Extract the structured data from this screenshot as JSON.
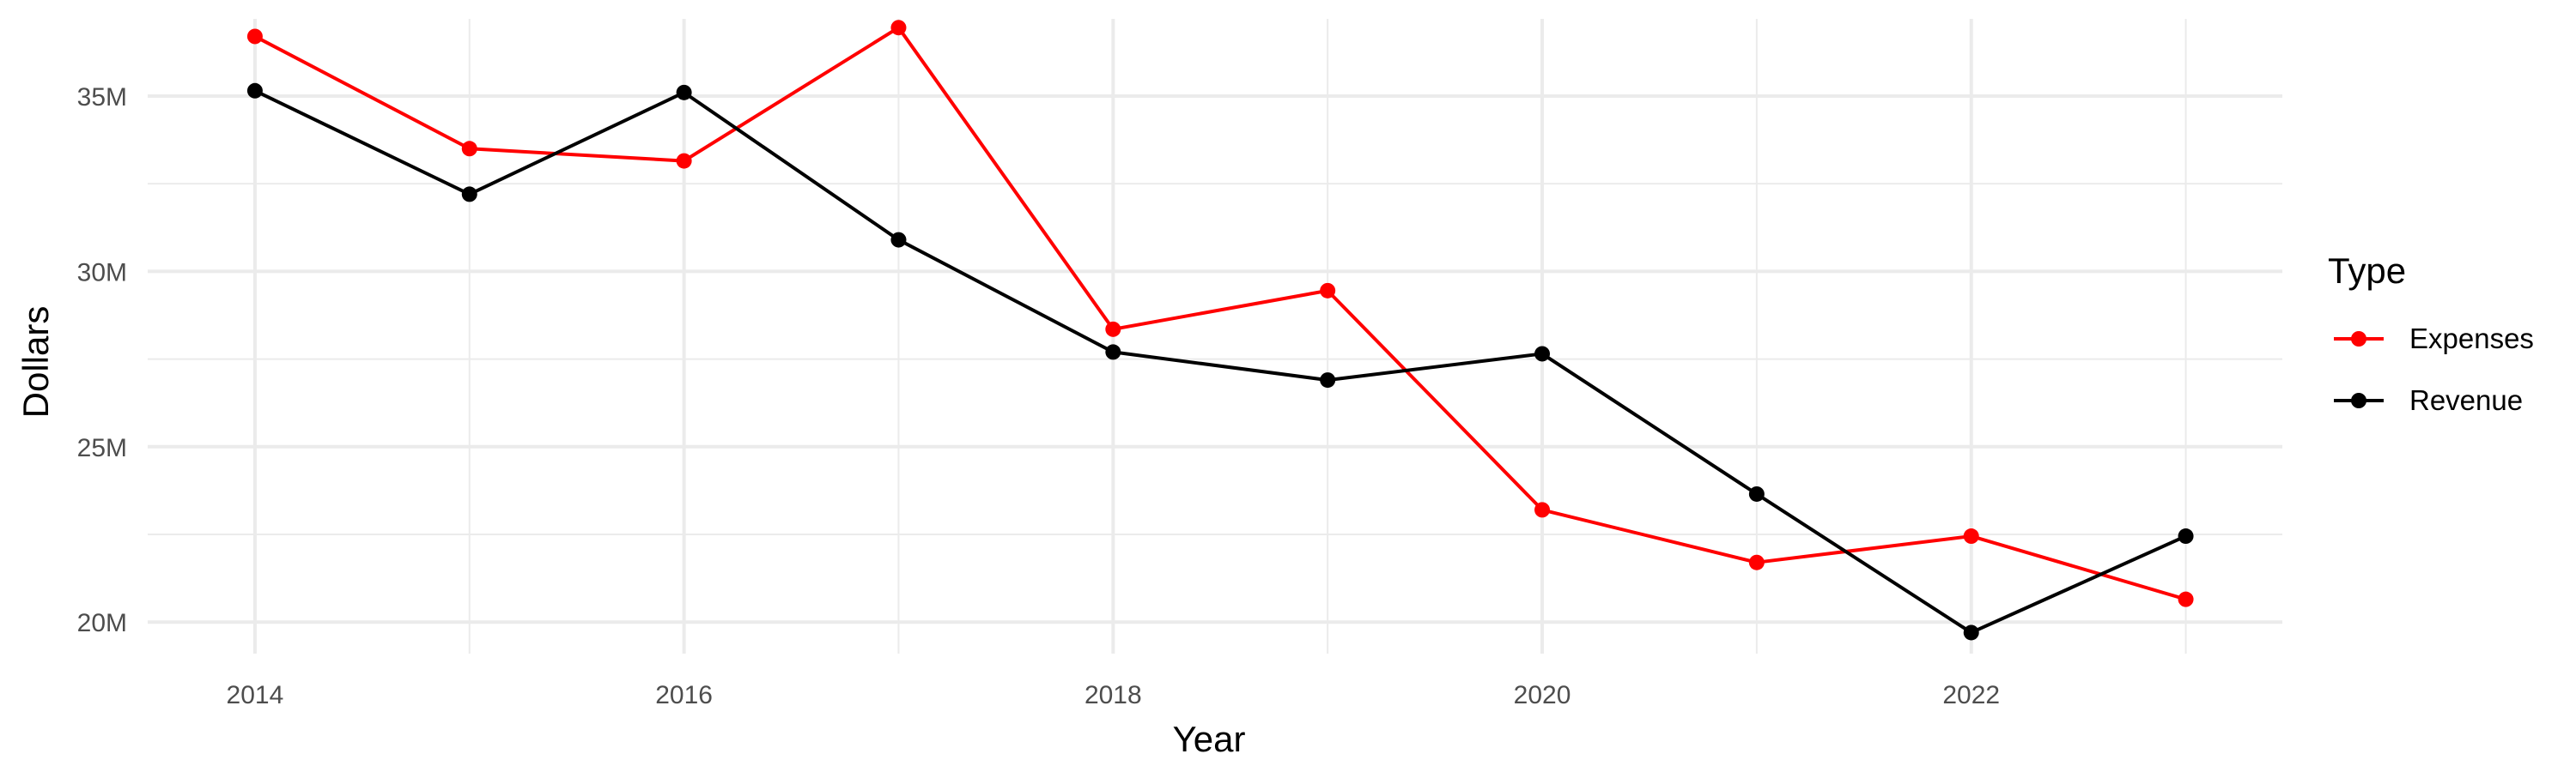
{
  "chart_data": {
    "type": "line",
    "title": "",
    "xlabel": "Year",
    "ylabel": "Dollars",
    "x": [
      2014,
      2015,
      2016,
      2017,
      2018,
      2019,
      2020,
      2021,
      2022,
      2023
    ],
    "x_ticks": [
      2014,
      2016,
      2018,
      2020,
      2022
    ],
    "x_tick_labels": [
      "2014",
      "2016",
      "2018",
      "2020",
      "2022"
    ],
    "xlim": [
      2013.5,
      2023.45
    ],
    "y_ticks": [
      20000000,
      25000000,
      30000000,
      35000000
    ],
    "y_tick_labels": [
      "20M",
      "25M",
      "30M",
      "35M"
    ],
    "ylim": [
      19100000,
      37200000
    ],
    "grid": true,
    "legend": {
      "title": "Type",
      "position": "right"
    },
    "series": [
      {
        "name": "Expenses",
        "color": "#ff0000",
        "values": [
          36700000,
          33500000,
          33150000,
          36950000,
          28350000,
          29450000,
          23200000,
          21700000,
          22450000,
          20650000
        ]
      },
      {
        "name": "Revenue",
        "color": "#000000",
        "values": [
          35150000,
          32200000,
          35100000,
          30900000,
          27700000,
          26900000,
          27650000,
          23650000,
          19700000,
          22450000
        ]
      }
    ]
  }
}
